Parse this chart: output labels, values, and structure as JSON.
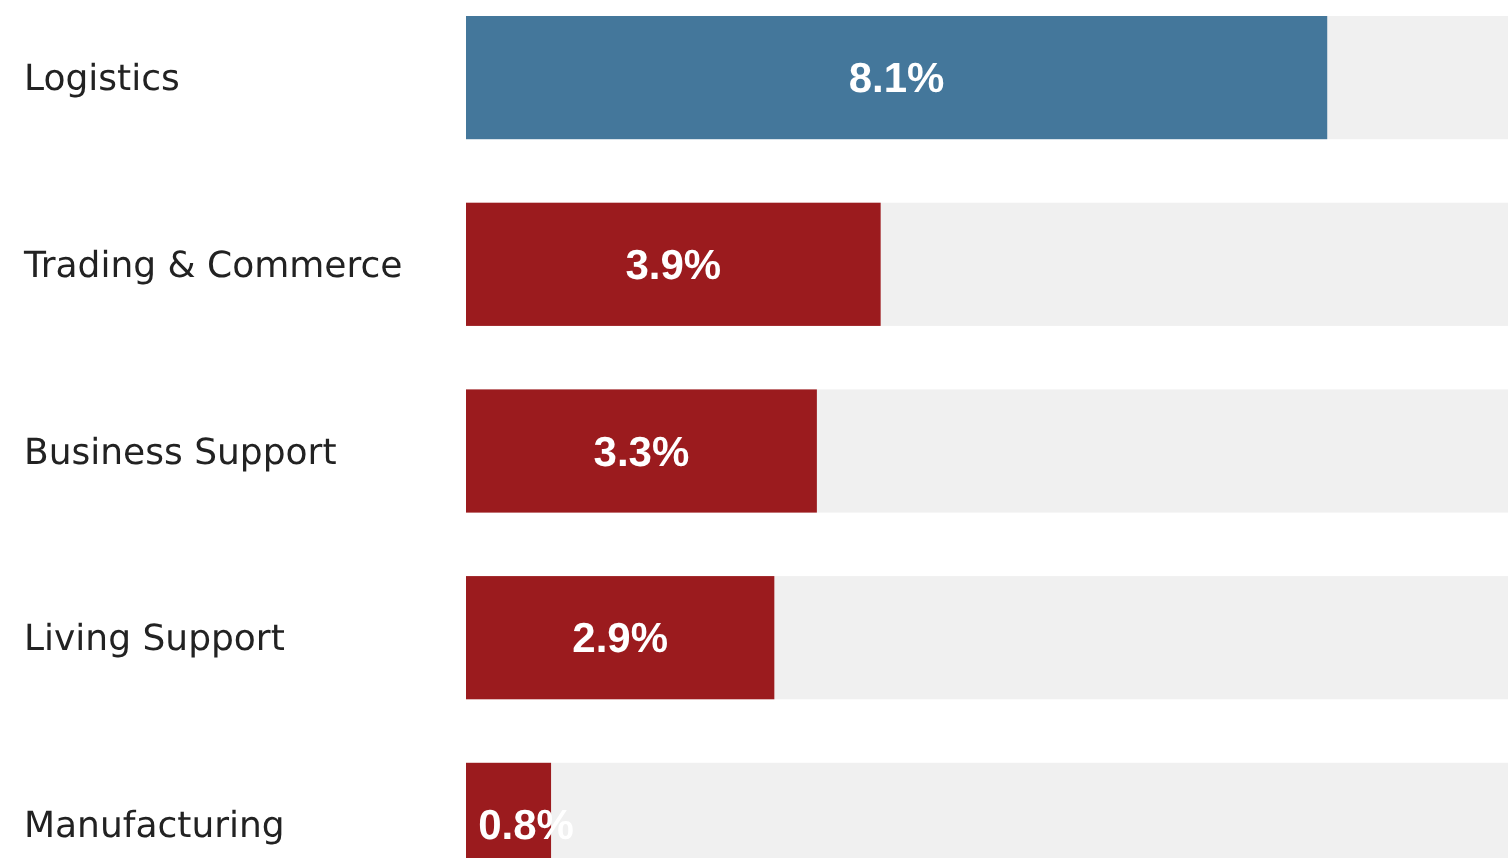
{
  "chart_data": {
    "type": "bar",
    "orientation": "horizontal",
    "categories": [
      "Logistics",
      "Trading & Commerce",
      "Business Support",
      "Living Support",
      "Manufacturing"
    ],
    "values": [
      8.1,
      3.9,
      3.3,
      2.9,
      0.8
    ],
    "colors": [
      "#44779b",
      "#9b1b1e",
      "#9b1b1e",
      "#9b1b1e",
      "#9b1b1e"
    ],
    "value_labels": [
      "8.1%",
      "3.9%",
      "3.3%",
      "2.9%",
      "0.8%"
    ],
    "xlim": [
      0,
      9.8
    ]
  }
}
